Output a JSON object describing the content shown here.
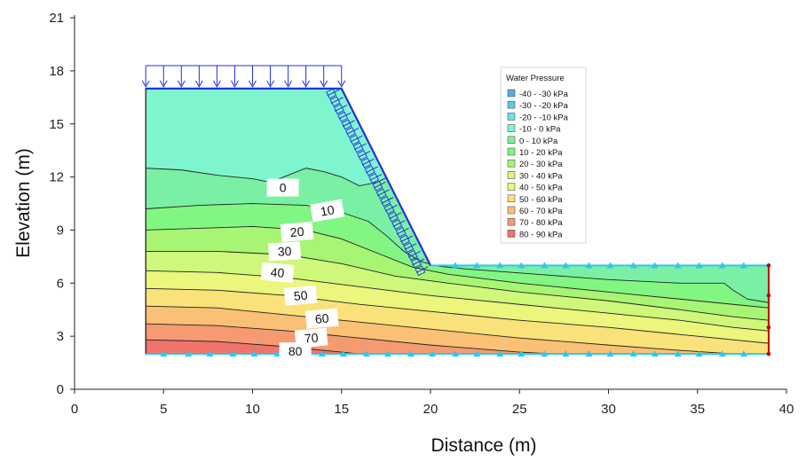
{
  "chart_data": {
    "type": "area",
    "title": "",
    "xlabel": "Distance (m)",
    "ylabel": "Elevation (m)",
    "xlim": [
      0,
      40
    ],
    "ylim": [
      0,
      21
    ],
    "xticks": [
      "0",
      "5",
      "10",
      "15",
      "20",
      "25",
      "30",
      "35",
      "40"
    ],
    "yticks": [
      "0",
      "3",
      "6",
      "9",
      "12",
      "15",
      "18",
      "21"
    ],
    "legend_title": "Water Pressure",
    "legend_placement": "top-right",
    "legend": [
      {
        "label": "-40 - -30 kPa",
        "color": "#5aa9e6"
      },
      {
        "label": "-30 - -20 kPa",
        "color": "#5cc8ee"
      },
      {
        "label": "-20 - -10 kPa",
        "color": "#66e3ea"
      },
      {
        "label": "-10 - 0 kPa",
        "color": "#7ff5cf"
      },
      {
        "label": "0 - 10 kPa",
        "color": "#7af0a4"
      },
      {
        "label": "10 - 20 kPa",
        "color": "#82f682"
      },
      {
        "label": "20 - 30 kPa",
        "color": "#a8f574"
      },
      {
        "label": "30 - 40 kPa",
        "color": "#cff77a"
      },
      {
        "label": "40 - 50 kPa",
        "color": "#ecf57c"
      },
      {
        "label": "50 - 60 kPa",
        "color": "#f9e27a"
      },
      {
        "label": "60 - 70 kPa",
        "color": "#f9c076"
      },
      {
        "label": "70 - 80 kPa",
        "color": "#f69a72"
      },
      {
        "label": "80 - 90 kPa",
        "color": "#f0736c"
      }
    ],
    "geometry": {
      "outline": [
        [
          4,
          2
        ],
        [
          4,
          17
        ],
        [
          15,
          17
        ],
        [
          20,
          7
        ],
        [
          39,
          7
        ],
        [
          39,
          2
        ]
      ],
      "top_load_span": [
        4,
        15
      ],
      "slope_load_span": [
        [
          15,
          17
        ],
        [
          20,
          7
        ]
      ]
    },
    "contour_levels": [
      {
        "value": 0,
        "label": "0",
        "points": [
          [
            4,
            12.5
          ],
          [
            6,
            12.4
          ],
          [
            8,
            12.1
          ],
          [
            10,
            11.9
          ],
          [
            11,
            11.7
          ],
          [
            12,
            12.1
          ],
          [
            13,
            12.5
          ],
          [
            14,
            12.3
          ],
          [
            15,
            12.0
          ],
          [
            16,
            11.5
          ],
          [
            17,
            11.7
          ],
          [
            18,
            12.2
          ]
        ]
      },
      {
        "value": 10,
        "label": "10",
        "points": [
          [
            4,
            10.2
          ],
          [
            7,
            10.4
          ],
          [
            10,
            10.5
          ],
          [
            13,
            10.4
          ],
          [
            15,
            10.0
          ],
          [
            16.5,
            9.5
          ],
          [
            17.5,
            8.7
          ],
          [
            18.5,
            7.8
          ],
          [
            19.5,
            7.2
          ],
          [
            20.5,
            6.95
          ],
          [
            22,
            6.8
          ],
          [
            26,
            6.5
          ],
          [
            30,
            6.2
          ],
          [
            34,
            6.0
          ],
          [
            36.5,
            6.0
          ],
          [
            37,
            5.6
          ],
          [
            37.8,
            5.1
          ],
          [
            39,
            4.9
          ]
        ]
      },
      {
        "value": 20,
        "label": "20",
        "points": [
          [
            4,
            9.0
          ],
          [
            7,
            9.1
          ],
          [
            10,
            9.2
          ],
          [
            13,
            9.0
          ],
          [
            15,
            8.5
          ],
          [
            17,
            7.7
          ],
          [
            19,
            6.9
          ],
          [
            21,
            6.5
          ],
          [
            25,
            6.0
          ],
          [
            30,
            5.5
          ],
          [
            34,
            5.1
          ],
          [
            37,
            4.8
          ],
          [
            39,
            4.6
          ]
        ]
      },
      {
        "value": 30,
        "label": "30",
        "points": [
          [
            4,
            7.8
          ],
          [
            8,
            7.8
          ],
          [
            12,
            7.6
          ],
          [
            15,
            7.1
          ],
          [
            18,
            6.4
          ],
          [
            21,
            6.0
          ],
          [
            25,
            5.5
          ],
          [
            30,
            5.0
          ],
          [
            34,
            4.5
          ],
          [
            37,
            4.1
          ],
          [
            39,
            3.9
          ]
        ]
      },
      {
        "value": 40,
        "label": "40",
        "points": [
          [
            4,
            6.7
          ],
          [
            8,
            6.6
          ],
          [
            12,
            6.3
          ],
          [
            16,
            5.8
          ],
          [
            20,
            5.3
          ],
          [
            25,
            4.8
          ],
          [
            30,
            4.3
          ],
          [
            34,
            3.9
          ],
          [
            37,
            3.5
          ],
          [
            39,
            3.3
          ]
        ]
      },
      {
        "value": 50,
        "label": "50",
        "points": [
          [
            4,
            5.7
          ],
          [
            8,
            5.6
          ],
          [
            12,
            5.3
          ],
          [
            16,
            4.8
          ],
          [
            20,
            4.4
          ],
          [
            25,
            3.9
          ],
          [
            30,
            3.5
          ],
          [
            34,
            3.1
          ],
          [
            37,
            2.8
          ],
          [
            39,
            2.6
          ]
        ]
      },
      {
        "value": 60,
        "label": "60",
        "points": [
          [
            4,
            4.7
          ],
          [
            8,
            4.6
          ],
          [
            12,
            4.2
          ],
          [
            16,
            3.8
          ],
          [
            20,
            3.4
          ],
          [
            25,
            2.9
          ],
          [
            30,
            2.5
          ],
          [
            34,
            2.2
          ],
          [
            37,
            2.0
          ]
        ]
      },
      {
        "value": 70,
        "label": "70",
        "points": [
          [
            4,
            3.7
          ],
          [
            8,
            3.6
          ],
          [
            12,
            3.3
          ],
          [
            16,
            2.9
          ],
          [
            20,
            2.5
          ],
          [
            25,
            2.1
          ],
          [
            27,
            2.0
          ]
        ]
      },
      {
        "value": 80,
        "label": "80",
        "points": [
          [
            4,
            2.8
          ],
          [
            8,
            2.7
          ],
          [
            12,
            2.4
          ],
          [
            15,
            2.1
          ],
          [
            16,
            2.0
          ]
        ]
      }
    ],
    "contour_label_positions": [
      {
        "label": "0",
        "x": 11.7,
        "y": 11.4,
        "angle": 0
      },
      {
        "label": "10",
        "x": 14.2,
        "y": 10.1,
        "angle": -10
      },
      {
        "label": "20",
        "x": 12.5,
        "y": 8.9,
        "angle": -5
      },
      {
        "label": "30",
        "x": 11.8,
        "y": 7.8,
        "angle": -3
      },
      {
        "label": "40",
        "x": 11.4,
        "y": 6.6,
        "angle": 5
      },
      {
        "label": "50",
        "x": 12.7,
        "y": 5.3,
        "angle": -5
      },
      {
        "label": "60",
        "x": 13.9,
        "y": 4.0,
        "angle": -5
      },
      {
        "label": "70",
        "x": 13.3,
        "y": 2.9,
        "angle": -5
      },
      {
        "label": "80",
        "x": 12.4,
        "y": 2.15,
        "angle": 0
      }
    ],
    "boundary_nodes_bottom": [
      5,
      6.4,
      7.6,
      8.9,
      10.1,
      11.4,
      12.6,
      13.9,
      15.1,
      16.4,
      17.6,
      18.9,
      20.1,
      21.4,
      22.6,
      23.9,
      25.1,
      26.4,
      27.6,
      28.9,
      30.1,
      31.4,
      32.6,
      33.9,
      35.1,
      36.4,
      37.6
    ],
    "boundary_nodes_top": [
      21.4,
      22.6,
      23.9,
      25.1,
      26.4,
      27.6,
      28.9,
      30.1,
      31.4,
      32.6,
      33.9,
      35.1,
      36.4,
      37.6
    ],
    "right_boundary_nodes": [
      2,
      3.5,
      5.3,
      7
    ]
  }
}
